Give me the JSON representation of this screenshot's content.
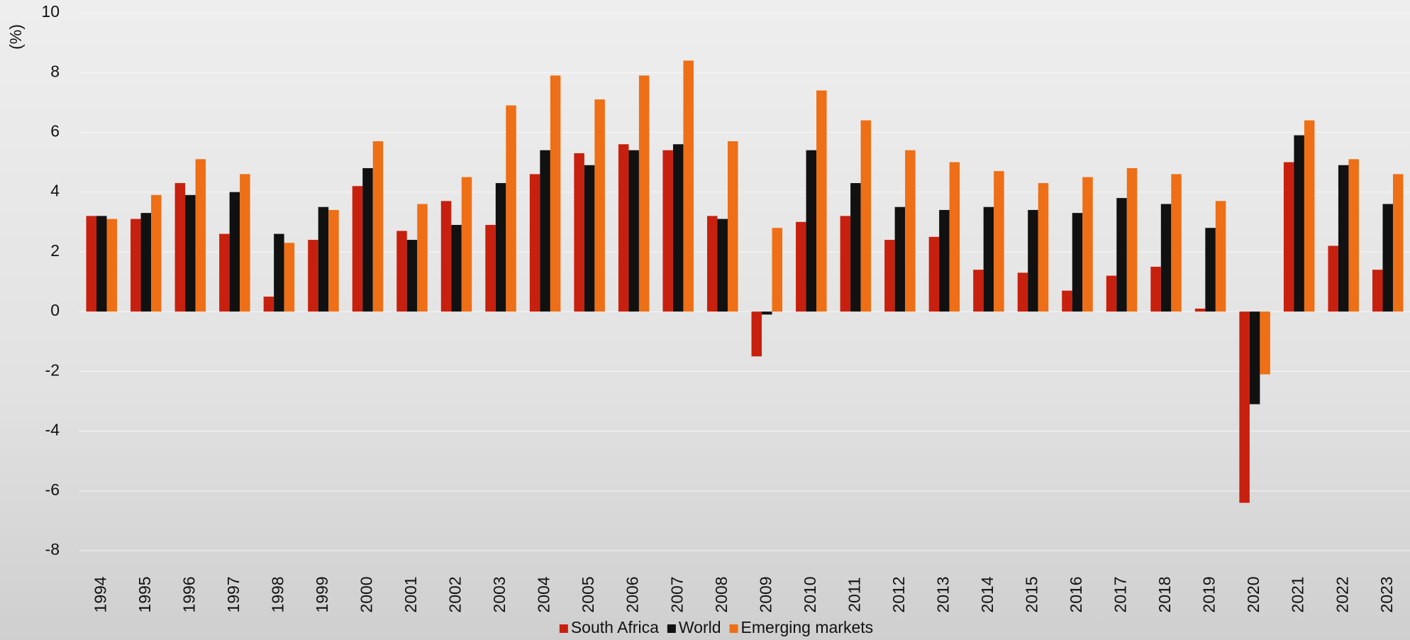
{
  "chart_data": {
    "type": "bar",
    "y_label": "(%)",
    "categories": [
      "1994",
      "1995",
      "1996",
      "1997",
      "1998",
      "1999",
      "2000",
      "2001",
      "2002",
      "2003",
      "2004",
      "2005",
      "2006",
      "2007",
      "2008",
      "2009",
      "2010",
      "2011",
      "2012",
      "2013",
      "2014",
      "2015",
      "2016",
      "2017",
      "2018",
      "2019",
      "2020",
      "2021",
      "2022",
      "2023"
    ],
    "series": [
      {
        "name": "South Africa",
        "color": "#c8200e",
        "values": [
          3.2,
          3.1,
          4.3,
          2.6,
          0.5,
          2.4,
          4.2,
          2.7,
          3.7,
          2.9,
          4.6,
          5.3,
          5.6,
          5.4,
          3.2,
          -1.5,
          3.0,
          3.2,
          2.4,
          2.5,
          1.4,
          1.3,
          0.7,
          1.2,
          1.5,
          0.1,
          -6.4,
          5.0,
          2.2,
          1.4
        ]
      },
      {
        "name": "World",
        "color": "#111111",
        "values": [
          3.2,
          3.3,
          3.9,
          4.0,
          2.6,
          3.5,
          4.8,
          2.4,
          2.9,
          4.3,
          5.4,
          4.9,
          5.4,
          5.6,
          3.1,
          -0.1,
          5.4,
          4.3,
          3.5,
          3.4,
          3.5,
          3.4,
          3.3,
          3.8,
          3.6,
          2.8,
          -3.1,
          5.9,
          4.9,
          3.6
        ]
      },
      {
        "name": "Emerging markets",
        "color": "#ee6f16",
        "values": [
          3.1,
          3.9,
          5.1,
          4.6,
          2.3,
          3.4,
          5.7,
          3.6,
          4.5,
          6.9,
          7.9,
          7.1,
          7.9,
          8.4,
          5.7,
          2.8,
          7.4,
          6.4,
          5.4,
          5.0,
          4.7,
          4.3,
          4.5,
          4.8,
          4.6,
          3.7,
          -2.1,
          6.4,
          5.1,
          4.6
        ]
      }
    ],
    "ylim": [
      -8,
      10
    ],
    "yticks": [
      -8,
      -6,
      -4,
      -2,
      0,
      2,
      4,
      6,
      8,
      10
    ],
    "grid": true,
    "legend": "bottom"
  }
}
